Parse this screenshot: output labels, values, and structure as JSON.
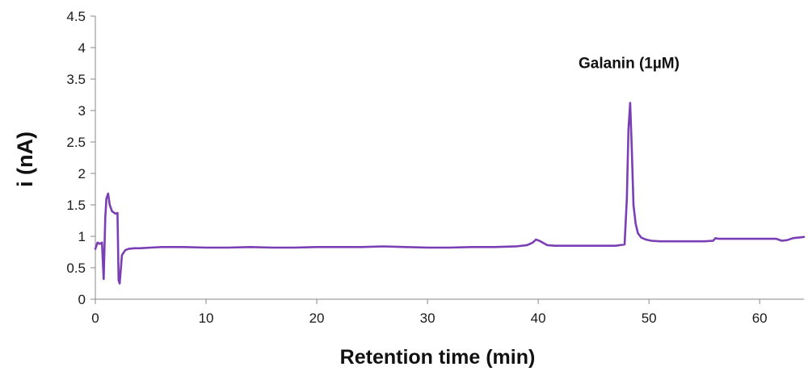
{
  "chart_data": {
    "type": "line",
    "title": "",
    "xlabel": "Retention time (min)",
    "ylabel": "i (nA)",
    "xlim": [
      0,
      64
    ],
    "ylim": [
      0,
      4.5
    ],
    "x_ticks": [
      "0",
      "10",
      "20",
      "30",
      "40",
      "50",
      "60"
    ],
    "y_ticks": [
      "0",
      "0.5",
      "1",
      "1.5",
      "2",
      "2.5",
      "3",
      "3.5",
      "4",
      "4.5"
    ],
    "grid": false,
    "legend": "none",
    "annotations": [
      {
        "text": "Galanin (1µM)",
        "x": 48.2,
        "y": 3.75
      }
    ],
    "series": [
      {
        "color": "#7a3fb5",
        "x": [
          0,
          0.2,
          0.4,
          0.6,
          0.75,
          0.9,
          1.0,
          1.15,
          1.3,
          1.5,
          1.8,
          2.0,
          2.1,
          2.2,
          2.4,
          2.7,
          3.0,
          3.5,
          4,
          5,
          6,
          7,
          8,
          10,
          12,
          14,
          16,
          18,
          20,
          22,
          24,
          26,
          28,
          30,
          32,
          34,
          36,
          38,
          39,
          39.5,
          39.8,
          40.2,
          40.8,
          41.5,
          42,
          43,
          45,
          47,
          47.8,
          48.0,
          48.15,
          48.3,
          48.45,
          48.6,
          48.8,
          49.0,
          49.3,
          49.7,
          50.2,
          51,
          52,
          53,
          54,
          55,
          55.8,
          56.0,
          56.3,
          57,
          58,
          59,
          60,
          61,
          61.5,
          62,
          62.5,
          63,
          64
        ],
        "y": [
          0.8,
          0.9,
          0.88,
          0.9,
          0.32,
          1.3,
          1.6,
          1.68,
          1.5,
          1.4,
          1.36,
          1.37,
          0.3,
          0.25,
          0.7,
          0.78,
          0.8,
          0.81,
          0.81,
          0.82,
          0.83,
          0.83,
          0.83,
          0.82,
          0.82,
          0.83,
          0.82,
          0.82,
          0.83,
          0.83,
          0.83,
          0.84,
          0.83,
          0.82,
          0.82,
          0.83,
          0.83,
          0.84,
          0.86,
          0.9,
          0.95,
          0.92,
          0.86,
          0.85,
          0.85,
          0.85,
          0.85,
          0.85,
          0.87,
          1.6,
          2.7,
          3.12,
          2.4,
          1.5,
          1.2,
          1.05,
          0.98,
          0.95,
          0.93,
          0.92,
          0.92,
          0.92,
          0.92,
          0.92,
          0.93,
          0.97,
          0.96,
          0.96,
          0.96,
          0.96,
          0.96,
          0.96,
          0.96,
          0.93,
          0.94,
          0.97,
          0.99
        ]
      }
    ]
  }
}
